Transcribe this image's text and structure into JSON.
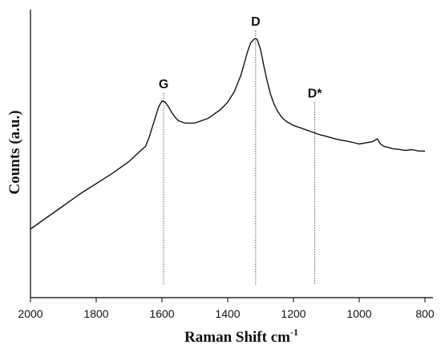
{
  "chart_data": {
    "type": "line",
    "xlabel": "Raman Shift cm",
    "xlabel_superscript": "-1",
    "ylabel": "Counts (a.u.)",
    "xlim": [
      2000,
      800
    ],
    "x_reversed": true,
    "x_ticks": [
      2000,
      1800,
      1600,
      1400,
      1200,
      1000,
      800
    ],
    "y_ticks_labeled": false,
    "grid": false,
    "series": [
      {
        "x": [
          2000,
          1950,
          1900,
          1850,
          1800,
          1750,
          1700,
          1670,
          1650,
          1640,
          1630,
          1620,
          1610,
          1600,
          1590,
          1580,
          1570,
          1560,
          1550,
          1530,
          1510,
          1500,
          1480,
          1460,
          1440,
          1420,
          1400,
          1380,
          1360,
          1350,
          1340,
          1330,
          1320,
          1315,
          1310,
          1300,
          1290,
          1280,
          1270,
          1260,
          1250,
          1240,
          1230,
          1220,
          1200,
          1180,
          1160,
          1140,
          1120,
          1100,
          1080,
          1060,
          1040,
          1020,
          1000,
          980,
          960,
          945,
          940,
          935,
          925,
          910,
          900,
          880,
          860,
          850,
          840,
          820,
          810,
          800
        ],
        "y": [
          5,
          10,
          15,
          20,
          24.5,
          29,
          34,
          38,
          40.5,
          44,
          48.5,
          53,
          57.5,
          60,
          59.5,
          57.5,
          55,
          53,
          51.5,
          50.5,
          50.5,
          50.5,
          51.5,
          52.5,
          54.5,
          56.5,
          59.5,
          64,
          71,
          76,
          81,
          85,
          86.5,
          86.8,
          86.3,
          82,
          75,
          68.5,
          63,
          59,
          56,
          53.8,
          52.2,
          51,
          49.5,
          48.5,
          47.5,
          46.5,
          45.5,
          44.8,
          44,
          43.3,
          42.8,
          42.2,
          41.5,
          42,
          42.5,
          43.7,
          42.5,
          41.5,
          40.5,
          40,
          39.5,
          39.2,
          38.8,
          38.9,
          39.1,
          38.5,
          38.5,
          38.4
        ]
      }
    ],
    "annotations": [
      {
        "label": "G",
        "x": 1595,
        "line_top": 60
      },
      {
        "label": "D",
        "x": 1315,
        "line_top": 86.8
      },
      {
        "label": "D*",
        "x": 1135,
        "line_top": 56
      }
    ]
  }
}
